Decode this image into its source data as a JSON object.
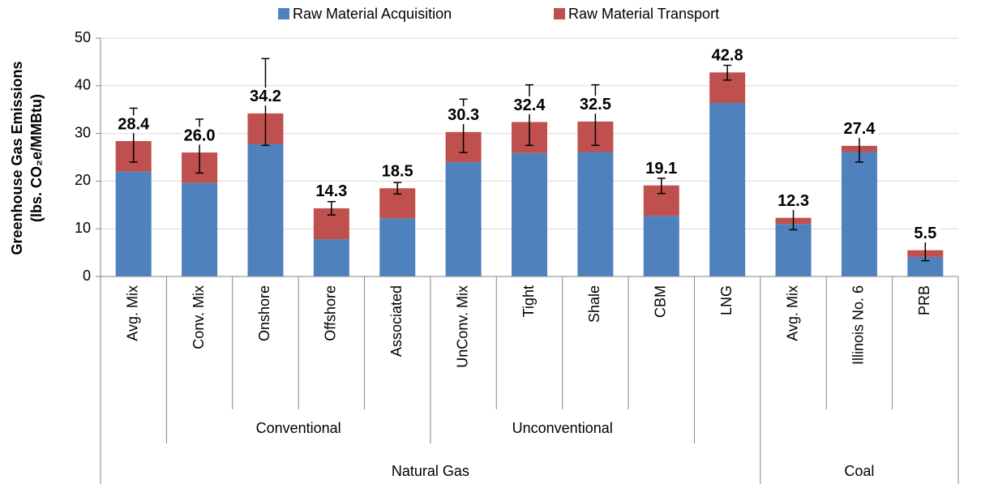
{
  "chart_data": {
    "type": "bar",
    "stacked": true,
    "y_label": [
      "Greenhouse Gas Emissions",
      "(lbs. CO₂e/MMBtu)"
    ],
    "categories": [
      "Avg. Mix",
      "Conv. Mix",
      "Onshore",
      "Offshore",
      "Associated",
      "UnConv. Mix",
      "Tight",
      "Shale",
      "CBM",
      "LNG",
      "Avg. Mix",
      "Illinois No. 6",
      "PRB"
    ],
    "subgroups": [
      {
        "label": "Conventional",
        "span": [
          1,
          4
        ]
      },
      {
        "label": "Unconventional",
        "span": [
          5,
          8
        ]
      }
    ],
    "groups": [
      {
        "label": "Natural Gas",
        "span": [
          0,
          9
        ]
      },
      {
        "label": "Coal",
        "span": [
          10,
          12
        ]
      }
    ],
    "series": [
      {
        "name": "Raw Material Acquisition",
        "color": "#4f81bd",
        "values": [
          22.0,
          19.6,
          27.8,
          7.8,
          12.2,
          24.0,
          25.9,
          26.1,
          12.7,
          36.4,
          11.0,
          26.1,
          4.1
        ]
      },
      {
        "name": "Raw Material Transport",
        "color": "#c0504d",
        "values": [
          6.4,
          6.4,
          6.4,
          6.5,
          6.3,
          6.3,
          6.5,
          6.4,
          6.4,
          6.4,
          1.3,
          1.3,
          1.4
        ]
      }
    ],
    "totals": [
      28.4,
      26.0,
      34.2,
      14.3,
      18.5,
      30.3,
      32.4,
      32.5,
      19.1,
      42.8,
      12.3,
      27.4,
      5.5
    ],
    "value_labels": [
      "28.4",
      "26.0",
      "34.2",
      "14.3",
      "18.5",
      "30.3",
      "32.4",
      "32.5",
      "19.1",
      "42.8",
      "12.3",
      "27.4",
      "5.5"
    ],
    "error_lower": [
      24.0,
      21.7,
      27.5,
      12.9,
      17.3,
      26.0,
      27.5,
      27.5,
      17.4,
      41.2,
      9.8,
      24.0,
      3.3
    ],
    "error_upper": [
      35.3,
      33.0,
      45.7,
      15.7,
      19.7,
      37.2,
      40.2,
      40.2,
      20.6,
      44.3,
      14.8,
      31.0,
      7.7
    ],
    "ylim": [
      0,
      50
    ],
    "yticks": [
      0,
      10,
      20,
      30,
      40,
      50
    ],
    "grid": true,
    "legend": "top"
  }
}
